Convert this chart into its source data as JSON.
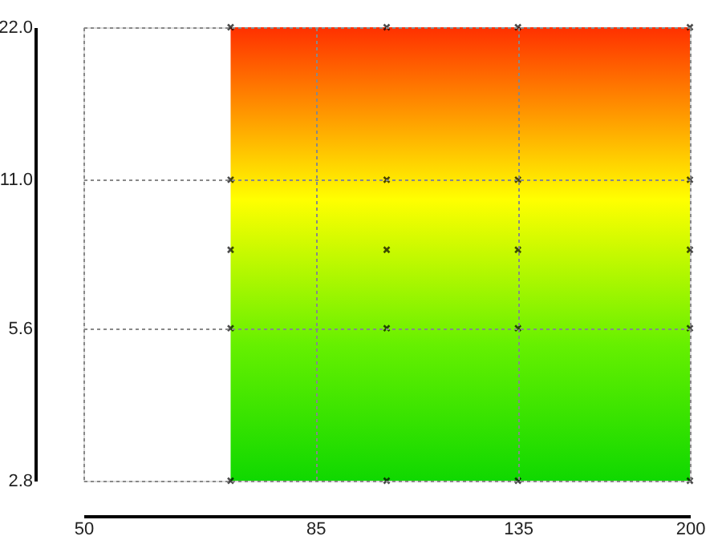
{
  "chart_data": {
    "type": "scatter",
    "log": "xy",
    "grid": true,
    "marker": "cross",
    "xlim": [
      50,
      200
    ],
    "xticks": [
      50,
      85,
      135,
      200
    ],
    "ylim": [
      2.8,
      22
    ],
    "yticks": [
      {
        "value": 2.8,
        "label": "2.8"
      },
      {
        "value": 5.6,
        "label": "5.6"
      },
      {
        "value": 11,
        "label": "11.0"
      },
      {
        "value": 22,
        "label": "22.0"
      }
    ],
    "bands": [
      {
        "axis": "x",
        "from": 70,
        "to": 200
      }
    ],
    "series": [
      {
        "color": "#000000",
        "x": [
          70,
          70,
          70,
          70,
          70,
          100,
          100,
          100,
          100,
          100,
          135,
          135,
          135,
          135,
          135,
          200,
          200,
          200,
          200,
          200
        ],
        "values": [
          2.8,
          5.6,
          8,
          11,
          22,
          2.8,
          5.6,
          8,
          11,
          22,
          2.8,
          5.6,
          8,
          11,
          22,
          2.8,
          5.6,
          8,
          11,
          22
        ]
      }
    ]
  }
}
